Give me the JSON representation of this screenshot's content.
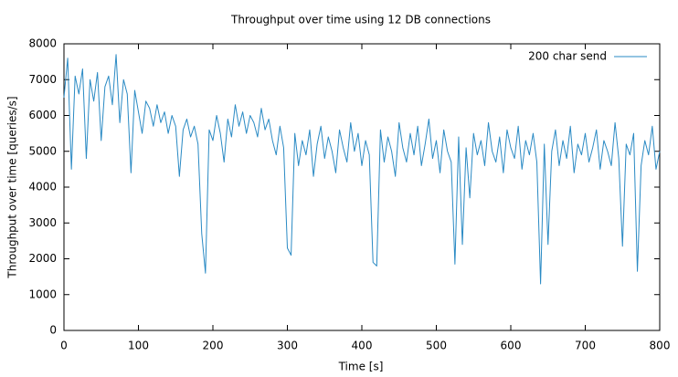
{
  "chart_data": {
    "type": "line",
    "title": "Throughput over time using 12 DB connections",
    "x_label": "Time [s]",
    "y_label": "Throughput over time [queries/s]",
    "legend": "top right",
    "grid": false,
    "xlim": [
      0,
      800
    ],
    "xticks": [
      0,
      100,
      200,
      300,
      400,
      500,
      600,
      700,
      800
    ],
    "ylim": [
      0,
      8000
    ],
    "yticks": [
      0,
      1000,
      2000,
      3000,
      4000,
      5000,
      6000,
      7000,
      8000
    ],
    "x": [
      0,
      5,
      10,
      15,
      20,
      25,
      30,
      35,
      40,
      45,
      50,
      55,
      60,
      65,
      70,
      75,
      80,
      85,
      90,
      95,
      100,
      105,
      110,
      115,
      120,
      125,
      130,
      135,
      140,
      145,
      150,
      155,
      160,
      165,
      170,
      175,
      180,
      185,
      190,
      195,
      200,
      205,
      210,
      215,
      220,
      225,
      230,
      235,
      240,
      245,
      250,
      255,
      260,
      265,
      270,
      275,
      280,
      285,
      290,
      295,
      300,
      305,
      310,
      315,
      320,
      325,
      330,
      335,
      340,
      345,
      350,
      355,
      360,
      365,
      370,
      375,
      380,
      385,
      390,
      395,
      400,
      405,
      410,
      415,
      420,
      425,
      430,
      435,
      440,
      445,
      450,
      455,
      460,
      465,
      470,
      475,
      480,
      485,
      490,
      495,
      500,
      505,
      510,
      515,
      520,
      525,
      530,
      535,
      540,
      545,
      550,
      555,
      560,
      565,
      570,
      575,
      580,
      585,
      590,
      595,
      600,
      605,
      610,
      615,
      620,
      625,
      630,
      635,
      640,
      645,
      650,
      655,
      660,
      665,
      670,
      675,
      680,
      685,
      690,
      695,
      700,
      705,
      710,
      715,
      720,
      725,
      730,
      735,
      740,
      745,
      750,
      755,
      760,
      765,
      770,
      775,
      780,
      785,
      790,
      795,
      800
    ],
    "series": [
      {
        "name": "200 char send",
        "color": "#2a8ac4",
        "values": [
          6500,
          7600,
          4500,
          7100,
          6600,
          7300,
          4800,
          7000,
          6400,
          7200,
          5300,
          6800,
          7100,
          6300,
          7700,
          5800,
          7000,
          6600,
          4400,
          6700,
          6100,
          5500,
          6400,
          6200,
          5700,
          6300,
          5800,
          6100,
          5500,
          6000,
          5700,
          4300,
          5600,
          5900,
          5400,
          5700,
          5200,
          2700,
          1600,
          5600,
          5300,
          6000,
          5500,
          4700,
          5900,
          5400,
          6300,
          5700,
          6100,
          5500,
          6000,
          5800,
          5400,
          6200,
          5600,
          5900,
          5300,
          4900,
          5700,
          5100,
          2300,
          2100,
          5500,
          4600,
          5300,
          4900,
          5600,
          4300,
          5200,
          5700,
          4800,
          5400,
          5000,
          4400,
          5600,
          5100,
          4700,
          5800,
          5000,
          5500,
          4600,
          5300,
          4900,
          1900,
          1800,
          5600,
          4700,
          5400,
          5000,
          4300,
          5800,
          5100,
          4700,
          5500,
          4900,
          5700,
          4600,
          5200,
          5900,
          4800,
          5300,
          4400,
          5600,
          5000,
          4700,
          1850,
          5400,
          2400,
          5100,
          3700,
          5500,
          4900,
          5300,
          4600,
          5800,
          5000,
          4700,
          5400,
          4400,
          5600,
          5100,
          4800,
          5700,
          4500,
          5300,
          4900,
          5500,
          4700,
          1300,
          5200,
          2400,
          5000,
          5600,
          4600,
          5300,
          4800,
          5700,
          4400,
          5200,
          4900,
          5500,
          4700,
          5100,
          5600,
          4500,
          5300,
          5000,
          4600,
          5800,
          4800,
          2350,
          5200,
          4900,
          5500,
          1650,
          4600,
          5300,
          4900,
          5700,
          4500,
          5000
        ]
      }
    ]
  }
}
